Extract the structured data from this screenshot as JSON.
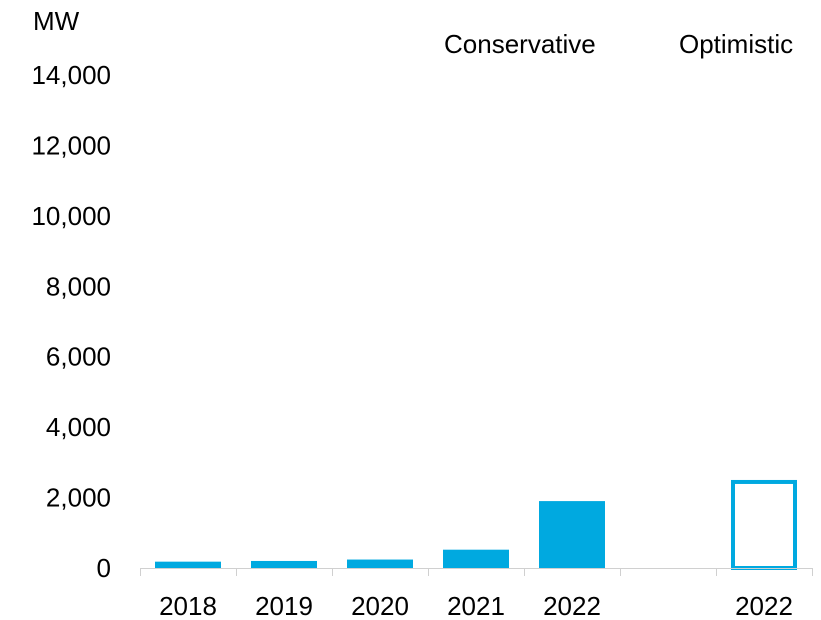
{
  "chart_data": {
    "type": "bar",
    "ylabel": "MW",
    "ylim": [
      0,
      14000
    ],
    "yticks": [
      0,
      2000,
      4000,
      6000,
      8000,
      10000,
      12000,
      14000
    ],
    "ytick_labels": [
      "0",
      "2,000",
      "4,000",
      "6,000",
      "8,000",
      "10,000",
      "12,000",
      "14,000"
    ],
    "categories": [
      "2018",
      "2019",
      "2020",
      "2021",
      "2022",
      "",
      "2022"
    ],
    "values": [
      180,
      200,
      240,
      520,
      1900,
      null,
      2500
    ],
    "bar_styles": [
      "filled",
      "filled",
      "filled",
      "filled",
      "filled",
      "none",
      "outline"
    ],
    "annotations": [
      "Conservative",
      "Optimistic"
    ],
    "grid": false,
    "colors": {
      "bar": "#00A9E0",
      "axis": "#d0d0d0",
      "text": "#000000"
    }
  }
}
